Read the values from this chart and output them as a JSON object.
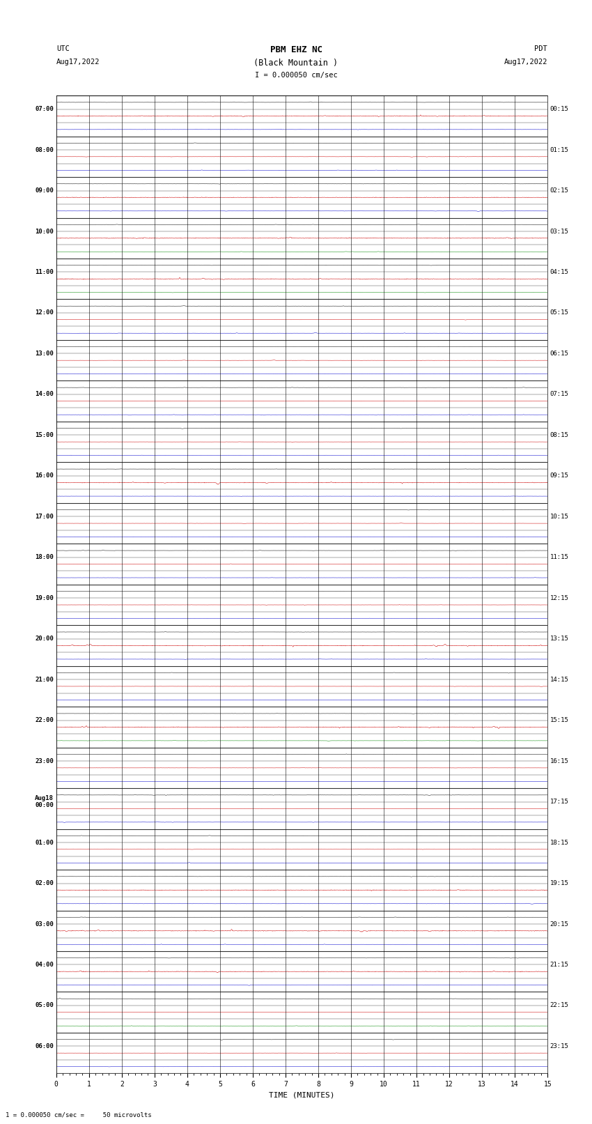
{
  "title_line1": "PBM EHZ NC",
  "title_line2": "(Black Mountain )",
  "title_scale": "I = 0.000050 cm/sec",
  "left_header_line1": "UTC",
  "left_header_line2": "Aug17,2022",
  "right_header_line1": "PDT",
  "right_header_line2": "Aug17,2022",
  "xlabel": "TIME (MINUTES)",
  "footer": "1 = 0.000050 cm/sec =     50 microvolts",
  "background_color": "#ffffff",
  "trace_color_black": "#000000",
  "trace_color_red": "#cc0000",
  "trace_color_blue": "#0000cc",
  "trace_color_green": "#008800",
  "grid_color": "#000000",
  "n_rows": 72,
  "xmin": 0,
  "xmax": 15,
  "xticks": [
    0,
    1,
    2,
    3,
    4,
    5,
    6,
    7,
    8,
    9,
    10,
    11,
    12,
    13,
    14,
    15
  ],
  "left_labels": [
    "07:00",
    "",
    "",
    "08:00",
    "",
    "",
    "09:00",
    "",
    "",
    "10:00",
    "",
    "",
    "11:00",
    "",
    "",
    "12:00",
    "",
    "",
    "13:00",
    "",
    "",
    "14:00",
    "",
    "",
    "15:00",
    "",
    "",
    "16:00",
    "",
    "",
    "17:00",
    "",
    "",
    "18:00",
    "",
    "",
    "19:00",
    "",
    "",
    "20:00",
    "",
    "",
    "21:00",
    "",
    "",
    "22:00",
    "",
    "",
    "23:00",
    "",
    "",
    "Aug18\n00:00",
    "",
    "",
    "01:00",
    "",
    "",
    "02:00",
    "",
    "",
    "03:00",
    "",
    "",
    "04:00",
    "",
    "",
    "05:00",
    "",
    "",
    "06:00",
    "",
    ""
  ],
  "right_labels": [
    "00:15",
    "",
    "",
    "01:15",
    "",
    "",
    "02:15",
    "",
    "",
    "03:15",
    "",
    "",
    "04:15",
    "",
    "",
    "05:15",
    "",
    "",
    "06:15",
    "",
    "",
    "07:15",
    "",
    "",
    "08:15",
    "",
    "",
    "09:15",
    "",
    "",
    "10:15",
    "",
    "",
    "11:15",
    "",
    "",
    "12:15",
    "",
    "",
    "13:15",
    "",
    "",
    "14:15",
    "",
    "",
    "15:15",
    "",
    "",
    "16:15",
    "",
    "",
    "17:15",
    "",
    "",
    "18:15",
    "",
    "",
    "19:15",
    "",
    "",
    "20:15",
    "",
    "",
    "21:15",
    "",
    "",
    "22:15",
    "",
    "",
    "23:15",
    "",
    ""
  ],
  "green_rows": [
    11,
    14,
    47,
    68
  ],
  "active_rows_high": [
    1,
    7,
    10,
    13,
    28,
    40,
    46,
    58,
    61,
    64
  ],
  "seed": 123
}
